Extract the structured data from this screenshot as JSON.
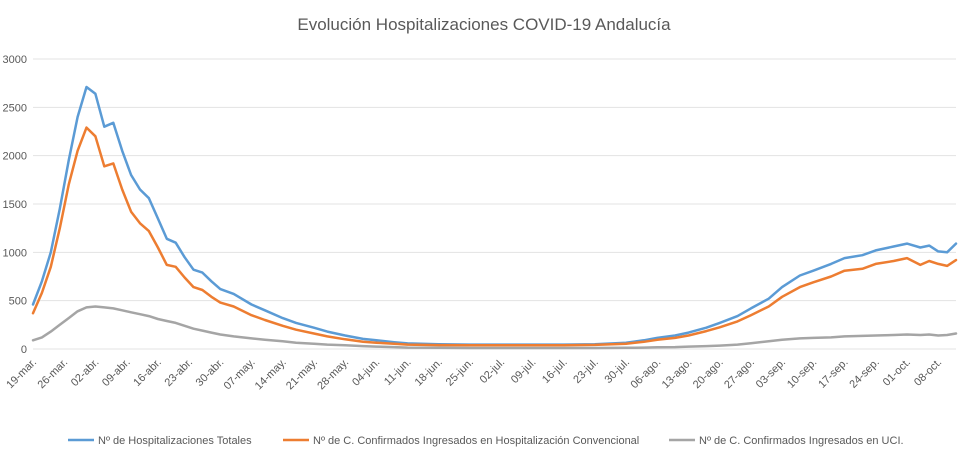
{
  "chart_data": {
    "type": "line",
    "title": "Evolución Hospitalizaciones COVID-19 Andalucía",
    "xlabel": "",
    "ylabel": "",
    "ylim": [
      0,
      3000
    ],
    "yticks": [
      0,
      500,
      1000,
      1500,
      2000,
      2500,
      3000
    ],
    "grid": true,
    "legend_position": "bottom",
    "x_start": "19-mar.",
    "x_tick_labels": [
      "19-mar.",
      "26-mar.",
      "02-abr.",
      "09-abr.",
      "16-abr.",
      "23-abr.",
      "30-abr.",
      "07-may.",
      "14-may.",
      "21-may.",
      "28-may.",
      "04-jun.",
      "11-jun.",
      "18-jun.",
      "25-jun.",
      "02-jul.",
      "09-jul.",
      "16-jul.",
      "23-jul.",
      "30-jul.",
      "06-ago.",
      "13-ago.",
      "20-ago.",
      "27-ago.",
      "03-sep.",
      "10-sep.",
      "17-sep.",
      "24-sep.",
      "01-oct.",
      "08-oct."
    ],
    "series": [
      {
        "name": "Nº de Hospitalizaciones Totales",
        "color": "#5b9bd5",
        "points": [
          [
            "19-mar.",
            460
          ],
          [
            "21-mar.",
            700
          ],
          [
            "23-mar.",
            1000
          ],
          [
            "25-mar.",
            1450
          ],
          [
            "27-mar.",
            1950
          ],
          [
            "29-mar.",
            2400
          ],
          [
            "31-mar.",
            2710
          ],
          [
            "02-abr.",
            2640
          ],
          [
            "04-abr.",
            2300
          ],
          [
            "06-abr.",
            2340
          ],
          [
            "08-abr.",
            2050
          ],
          [
            "10-abr.",
            1800
          ],
          [
            "12-abr.",
            1650
          ],
          [
            "14-abr.",
            1560
          ],
          [
            "16-abr.",
            1350
          ],
          [
            "18-abr.",
            1140
          ],
          [
            "20-abr.",
            1100
          ],
          [
            "22-abr.",
            950
          ],
          [
            "24-abr.",
            820
          ],
          [
            "26-abr.",
            790
          ],
          [
            "28-abr.",
            700
          ],
          [
            "30-abr.",
            620
          ],
          [
            "03-may.",
            570
          ],
          [
            "07-may.",
            460
          ],
          [
            "10-may.",
            400
          ],
          [
            "14-may.",
            320
          ],
          [
            "17-may.",
            270
          ],
          [
            "21-may.",
            220
          ],
          [
            "24-may.",
            180
          ],
          [
            "28-may.",
            140
          ],
          [
            "01-jun.",
            105
          ],
          [
            "04-jun.",
            90
          ],
          [
            "08-jun.",
            70
          ],
          [
            "11-jun.",
            58
          ],
          [
            "18-jun.",
            50
          ],
          [
            "25-jun.",
            45
          ],
          [
            "02-jul.",
            45
          ],
          [
            "09-jul.",
            45
          ],
          [
            "16-jul.",
            45
          ],
          [
            "23-jul.",
            50
          ],
          [
            "30-jul.",
            65
          ],
          [
            "03-ago.",
            90
          ],
          [
            "06-ago.",
            115
          ],
          [
            "10-ago.",
            140
          ],
          [
            "13-ago.",
            170
          ],
          [
            "17-ago.",
            220
          ],
          [
            "20-ago.",
            270
          ],
          [
            "24-ago.",
            340
          ],
          [
            "27-ago.",
            420
          ],
          [
            "31-ago.",
            520
          ],
          [
            "03-sep.",
            640
          ],
          [
            "07-sep.",
            760
          ],
          [
            "10-sep.",
            810
          ],
          [
            "14-sep.",
            880
          ],
          [
            "17-sep.",
            940
          ],
          [
            "21-sep.",
            970
          ],
          [
            "24-sep.",
            1020
          ],
          [
            "28-sep.",
            1060
          ],
          [
            "01-oct.",
            1090
          ],
          [
            "04-oct.",
            1050
          ],
          [
            "06-oct.",
            1070
          ],
          [
            "08-oct.",
            1010
          ],
          [
            "10-oct.",
            1000
          ],
          [
            "12-oct.",
            1090
          ]
        ]
      },
      {
        "name": "Nº de C. Confirmados Ingresados en Hospitalización Convencional",
        "color": "#ed7d31",
        "points": [
          [
            "19-mar.",
            370
          ],
          [
            "21-mar.",
            580
          ],
          [
            "23-mar.",
            850
          ],
          [
            "25-mar.",
            1250
          ],
          [
            "27-mar.",
            1700
          ],
          [
            "29-mar.",
            2050
          ],
          [
            "31-mar.",
            2290
          ],
          [
            "02-abr.",
            2200
          ],
          [
            "04-abr.",
            1890
          ],
          [
            "06-abr.",
            1920
          ],
          [
            "08-abr.",
            1650
          ],
          [
            "10-abr.",
            1420
          ],
          [
            "12-abr.",
            1300
          ],
          [
            "14-abr.",
            1220
          ],
          [
            "16-abr.",
            1050
          ],
          [
            "18-abr.",
            870
          ],
          [
            "20-abr.",
            850
          ],
          [
            "22-abr.",
            740
          ],
          [
            "24-abr.",
            640
          ],
          [
            "26-abr.",
            610
          ],
          [
            "28-abr.",
            540
          ],
          [
            "30-abr.",
            480
          ],
          [
            "03-may.",
            440
          ],
          [
            "07-may.",
            350
          ],
          [
            "10-may.",
            300
          ],
          [
            "14-may.",
            240
          ],
          [
            "17-may.",
            200
          ],
          [
            "21-may.",
            160
          ],
          [
            "24-may.",
            130
          ],
          [
            "28-may.",
            100
          ],
          [
            "01-jun.",
            75
          ],
          [
            "04-jun.",
            65
          ],
          [
            "08-jun.",
            55
          ],
          [
            "11-jun.",
            45
          ],
          [
            "18-jun.",
            40
          ],
          [
            "25-jun.",
            38
          ],
          [
            "02-jul.",
            38
          ],
          [
            "09-jul.",
            38
          ],
          [
            "16-jul.",
            38
          ],
          [
            "23-jul.",
            42
          ],
          [
            "30-jul.",
            55
          ],
          [
            "03-ago.",
            75
          ],
          [
            "06-ago.",
            95
          ],
          [
            "10-ago.",
            115
          ],
          [
            "13-ago.",
            140
          ],
          [
            "17-ago.",
            185
          ],
          [
            "20-ago.",
            225
          ],
          [
            "24-ago.",
            285
          ],
          [
            "27-ago.",
            350
          ],
          [
            "31-ago.",
            440
          ],
          [
            "03-sep.",
            540
          ],
          [
            "07-sep.",
            640
          ],
          [
            "10-sep.",
            690
          ],
          [
            "14-sep.",
            750
          ],
          [
            "17-sep.",
            810
          ],
          [
            "21-sep.",
            830
          ],
          [
            "24-sep.",
            880
          ],
          [
            "28-sep.",
            910
          ],
          [
            "01-oct.",
            940
          ],
          [
            "04-oct.",
            870
          ],
          [
            "06-oct.",
            910
          ],
          [
            "08-oct.",
            880
          ],
          [
            "10-oct.",
            860
          ],
          [
            "12-oct.",
            920
          ]
        ]
      },
      {
        "name": "Nº de C. Confirmados Ingresados en UCI.",
        "color": "#a5a5a5",
        "points": [
          [
            "19-mar.",
            90
          ],
          [
            "21-mar.",
            120
          ],
          [
            "23-mar.",
            180
          ],
          [
            "25-mar.",
            250
          ],
          [
            "27-mar.",
            320
          ],
          [
            "29-mar.",
            390
          ],
          [
            "31-mar.",
            430
          ],
          [
            "02-abr.",
            440
          ],
          [
            "04-abr.",
            430
          ],
          [
            "06-abr.",
            420
          ],
          [
            "08-abr.",
            400
          ],
          [
            "10-abr.",
            380
          ],
          [
            "12-abr.",
            360
          ],
          [
            "14-abr.",
            340
          ],
          [
            "16-abr.",
            310
          ],
          [
            "18-abr.",
            290
          ],
          [
            "20-abr.",
            270
          ],
          [
            "22-abr.",
            240
          ],
          [
            "24-abr.",
            210
          ],
          [
            "26-abr.",
            190
          ],
          [
            "28-abr.",
            170
          ],
          [
            "30-abr.",
            150
          ],
          [
            "03-may.",
            130
          ],
          [
            "07-may.",
            110
          ],
          [
            "10-may.",
            95
          ],
          [
            "14-may.",
            80
          ],
          [
            "17-may.",
            65
          ],
          [
            "21-may.",
            55
          ],
          [
            "24-may.",
            45
          ],
          [
            "28-may.",
            38
          ],
          [
            "01-jun.",
            30
          ],
          [
            "04-jun.",
            25
          ],
          [
            "08-jun.",
            20
          ],
          [
            "11-jun.",
            15
          ],
          [
            "18-jun.",
            12
          ],
          [
            "25-jun.",
            10
          ],
          [
            "02-jul.",
            10
          ],
          [
            "09-jul.",
            10
          ],
          [
            "16-jul.",
            10
          ],
          [
            "23-jul.",
            10
          ],
          [
            "30-jul.",
            12
          ],
          [
            "03-ago.",
            15
          ],
          [
            "06-ago.",
            18
          ],
          [
            "10-ago.",
            20
          ],
          [
            "13-ago.",
            25
          ],
          [
            "17-ago.",
            30
          ],
          [
            "20-ago.",
            35
          ],
          [
            "24-ago.",
            45
          ],
          [
            "27-ago.",
            60
          ],
          [
            "31-ago.",
            80
          ],
          [
            "03-sep.",
            95
          ],
          [
            "07-sep.",
            110
          ],
          [
            "10-sep.",
            115
          ],
          [
            "14-sep.",
            120
          ],
          [
            "17-sep.",
            130
          ],
          [
            "21-sep.",
            135
          ],
          [
            "24-sep.",
            140
          ],
          [
            "28-sep.",
            145
          ],
          [
            "01-oct.",
            150
          ],
          [
            "04-oct.",
            145
          ],
          [
            "06-oct.",
            150
          ],
          [
            "08-oct.",
            140
          ],
          [
            "10-oct.",
            145
          ],
          [
            "12-oct.",
            160
          ]
        ]
      }
    ]
  }
}
